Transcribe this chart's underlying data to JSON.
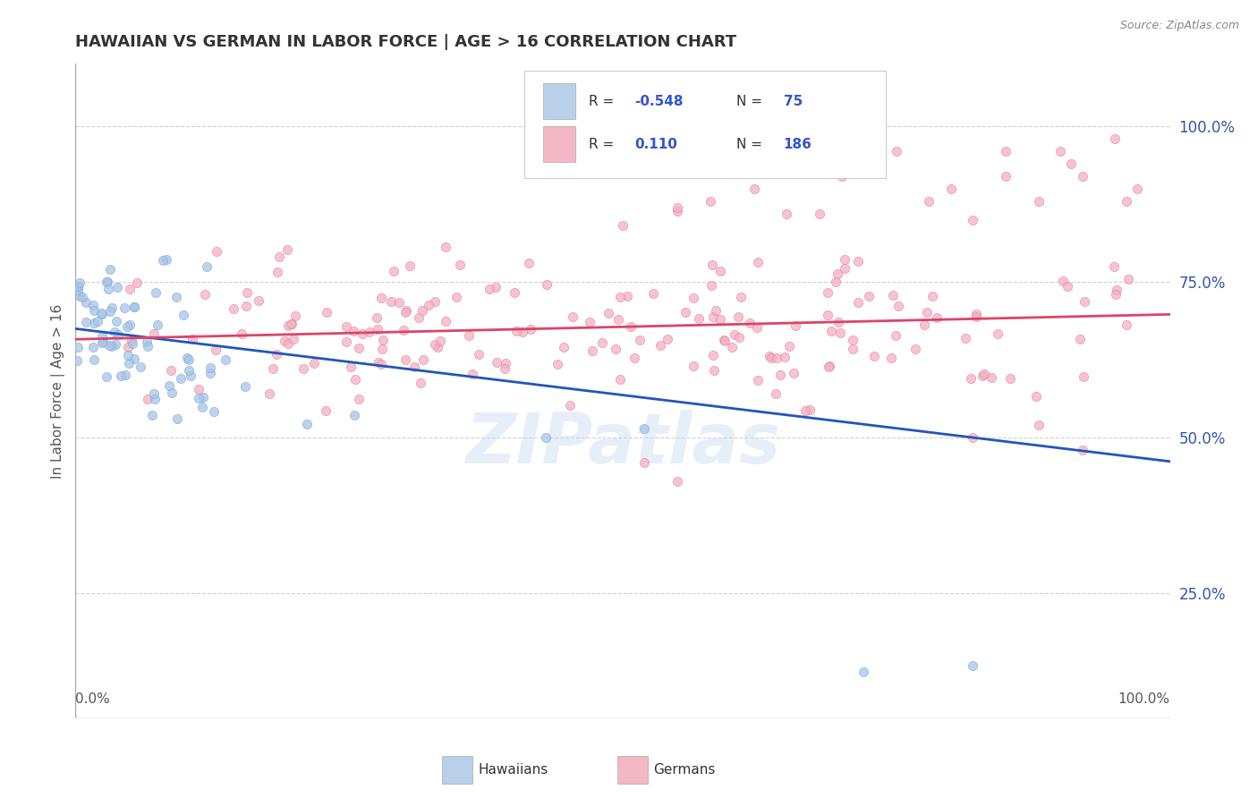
{
  "title": "HAWAIIAN VS GERMAN IN LABOR FORCE | AGE > 16 CORRELATION CHART",
  "source": "Source: ZipAtlas.com",
  "ylabel": "In Labor Force | Age > 16",
  "ytick_labels": [
    "25.0%",
    "50.0%",
    "75.0%",
    "100.0%"
  ],
  "ytick_values": [
    0.25,
    0.5,
    0.75,
    1.0
  ],
  "xlim": [
    0.0,
    1.0
  ],
  "ylim": [
    0.05,
    1.1
  ],
  "hawaiian_fill": "#a8c4e8",
  "hawaiian_edge": "#7aaad0",
  "german_fill": "#f4b0c0",
  "german_edge": "#e080a0",
  "trend_hawaiian": "#2255bb",
  "trend_german": "#dd4466",
  "legend_box_hawaiian": "#b8d0ea",
  "legend_box_german": "#f4b8c4",
  "R_hawaiian": -0.548,
  "N_hawaiian": 75,
  "R_german": 0.11,
  "N_german": 186,
  "watermark": "ZIPatlas",
  "background": "#ffffff",
  "grid_color": "#cccccc",
  "trend_h_y0": 0.675,
  "trend_h_y1": 0.462,
  "trend_g_y0": 0.658,
  "trend_g_y1": 0.698
}
